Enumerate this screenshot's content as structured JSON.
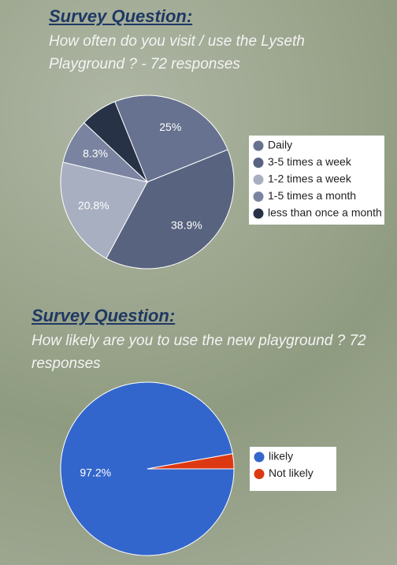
{
  "chart_data": [
    {
      "type": "pie",
      "title": "Survey Question:",
      "subtitle": "How often do you visit / use the Lyseth Playground ? - 72 responses",
      "categories": [
        "Daily",
        "3-5 times a week",
        "1-2 times a week",
        "1-5 times a month",
        "less than once a month"
      ],
      "values": [
        25,
        38.9,
        20.8,
        8.3,
        6.9
      ],
      "value_labels": [
        "25%",
        "38.9%",
        "20.8%",
        "8.3%",
        null
      ],
      "colors": [
        "#66728f",
        "#58637f",
        "#a8afc1",
        "#7a84a0",
        "#273246"
      ]
    },
    {
      "type": "pie",
      "title": "Survey Question:",
      "subtitle": "How likely are you to use the new playground ? 72 responses",
      "categories": [
        "likely",
        "Not likely"
      ],
      "values": [
        97.2,
        2.8
      ],
      "value_labels": [
        "97.2%",
        null
      ],
      "colors": [
        "#3366cc",
        "#dc3912"
      ]
    }
  ]
}
